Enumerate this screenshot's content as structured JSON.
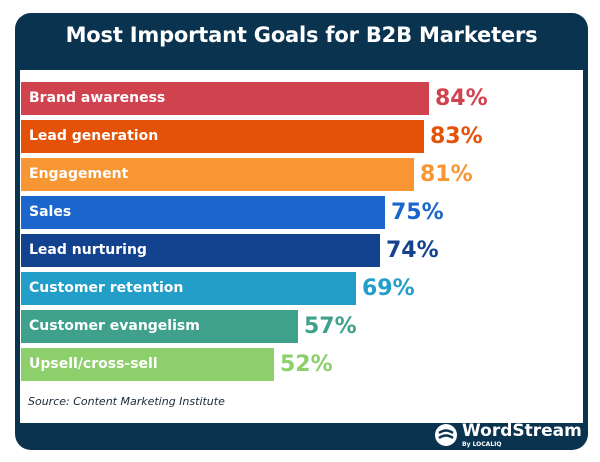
{
  "title": "Most Important Goals for B2B Marketers",
  "source": "Source: Content Marketing Institute",
  "logo": {
    "name": "WordStream",
    "sub": "By LOCALIQ",
    "icon": "wordstream-wave-icon"
  },
  "colors": {
    "frame": "#0a3350",
    "panel": "#ffffff"
  },
  "bars": [
    {
      "label": "Brand awareness",
      "value": "84%",
      "color": "#d1424f",
      "value_color": "#d1424f"
    },
    {
      "label": "Lead generation",
      "value": "83%",
      "color": "#e35207",
      "value_color": "#e35207"
    },
    {
      "label": "Engagement",
      "value": "81%",
      "color": "#f79632",
      "value_color": "#f79632"
    },
    {
      "label": "Sales",
      "value": "75%",
      "color": "#1b66cc",
      "value_color": "#1b66cc"
    },
    {
      "label": "Lead nurturing",
      "value": "74%",
      "color": "#13428e",
      "value_color": "#13428e"
    },
    {
      "label": "Customer retention",
      "value": "69%",
      "color": "#229ec9",
      "value_color": "#229ec9"
    },
    {
      "label": "Customer evangelism",
      "value": "57%",
      "color": "#3fa18c",
      "value_color": "#3fa18c"
    },
    {
      "label": "Upsell/cross-sell",
      "value": "52%",
      "color": "#8dcf6a",
      "value_color": "#8dcf6a"
    }
  ],
  "chart_data": {
    "type": "bar",
    "orientation": "horizontal",
    "title": "Most Important Goals for B2B Marketers",
    "categories": [
      "Brand awareness",
      "Lead generation",
      "Engagement",
      "Sales",
      "Lead nurturing",
      "Customer retention",
      "Customer evangelism",
      "Upsell/cross-sell"
    ],
    "values": [
      84,
      83,
      81,
      75,
      74,
      69,
      57,
      52
    ],
    "unit": "%",
    "xlabel": "",
    "ylabel": "",
    "grid": false,
    "legend": null,
    "annotations": [
      "Source: Content Marketing Institute"
    ]
  }
}
